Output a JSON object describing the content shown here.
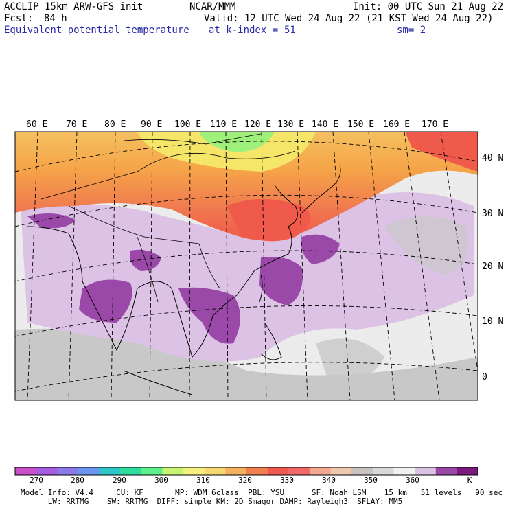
{
  "header": {
    "model_line": "ACCLIP 15km ARW-GFS init",
    "center_line": "NCAR/MMM",
    "init_line": "Init: 00 UTC Sun 21 Aug 22",
    "forecast_label": "Fcst:",
    "forecast_hours": "84 h",
    "valid_line": "Valid: 12 UTC Wed 24 Aug 22 (21 KST Wed 24 Aug 22)",
    "field_name": "Equivalent potential temperature",
    "level_label": "at k-index =",
    "level_value": "51",
    "smoothing": "sm= 2"
  },
  "map": {
    "longitude_labels": [
      "60 E",
      "70 E",
      "80 E",
      "90 E",
      "100 E",
      "110 E",
      "120 E",
      "130 E",
      "140 E",
      "150 E",
      "160 E",
      "170 E"
    ],
    "latitude_labels": [
      "40 N",
      "30 N",
      "20 N",
      "10 N",
      "0"
    ],
    "colors": {
      "hot": "#f06a4f",
      "warm": "#f5a448",
      "yellow": "#f5e66a",
      "green": "#9ef07a",
      "light_purple": "#dcc3e6",
      "medium_purple": "#9a49a8",
      "gray": "#c8c8c8",
      "light_gray": "#ececec"
    }
  },
  "colorbar": {
    "colors": [
      "#c94ec9",
      "#a65ce0",
      "#8a7ae8",
      "#6a96f0",
      "#2fc6c8",
      "#2fdc9e",
      "#5cf08a",
      "#c8f570",
      "#f5f080",
      "#f5d870",
      "#f5b060",
      "#f08050",
      "#f05a50",
      "#f06a6a",
      "#f5a890",
      "#f0c8b0",
      "#c8c2c0",
      "#d8d8d8",
      "#f0f0f0",
      "#dcc3e6",
      "#9a49a8",
      "#7a1a80"
    ],
    "tick_labels": [
      "270",
      "280",
      "290",
      "300",
      "310",
      "320",
      "330",
      "340",
      "350",
      "360"
    ],
    "unit": "K"
  },
  "footer": {
    "line1": "Model Info: V4.4     CU: KF       MP: WDM 6class  PBL: YSU      SF: Noah LSM    15 km   51 levels   90 sec",
    "line2": "      LW: RRTMG    SW: RRTMG  DIFF: simple KM: 2D Smagor DAMP: Rayleigh3  SFLAY: MM5"
  }
}
